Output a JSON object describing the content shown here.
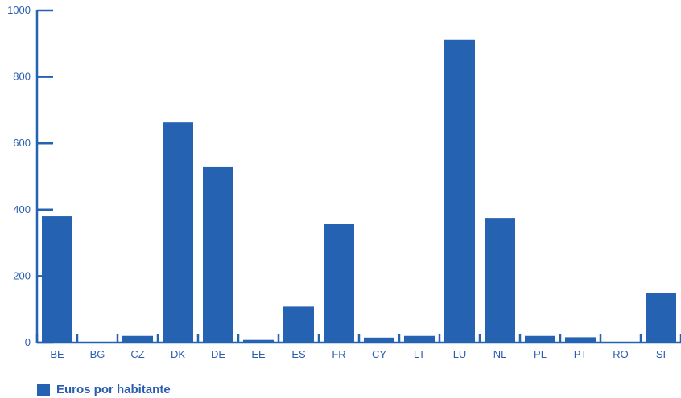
{
  "colors": {
    "bar": "#2562b2",
    "axis": "#2562b2",
    "text": "#2a5db0"
  },
  "legend": {
    "label": "Euros por habitante"
  },
  "chart_data": {
    "type": "bar",
    "categories": [
      "BE",
      "BG",
      "CZ",
      "DK",
      "DE",
      "EE",
      "ES",
      "FR",
      "CY",
      "LT",
      "LU",
      "NL",
      "PL",
      "PT",
      "RO",
      "SI"
    ],
    "series": [
      {
        "name": "Euros por habitante",
        "values": [
          380,
          2,
          20,
          663,
          528,
          8,
          108,
          357,
          15,
          20,
          911,
          375,
          20,
          16,
          2,
          150
        ]
      }
    ],
    "ylim": [
      0,
      1000
    ],
    "yticks": [
      0,
      200,
      400,
      600,
      800,
      1000
    ],
    "legend_position": "bottom-left"
  }
}
